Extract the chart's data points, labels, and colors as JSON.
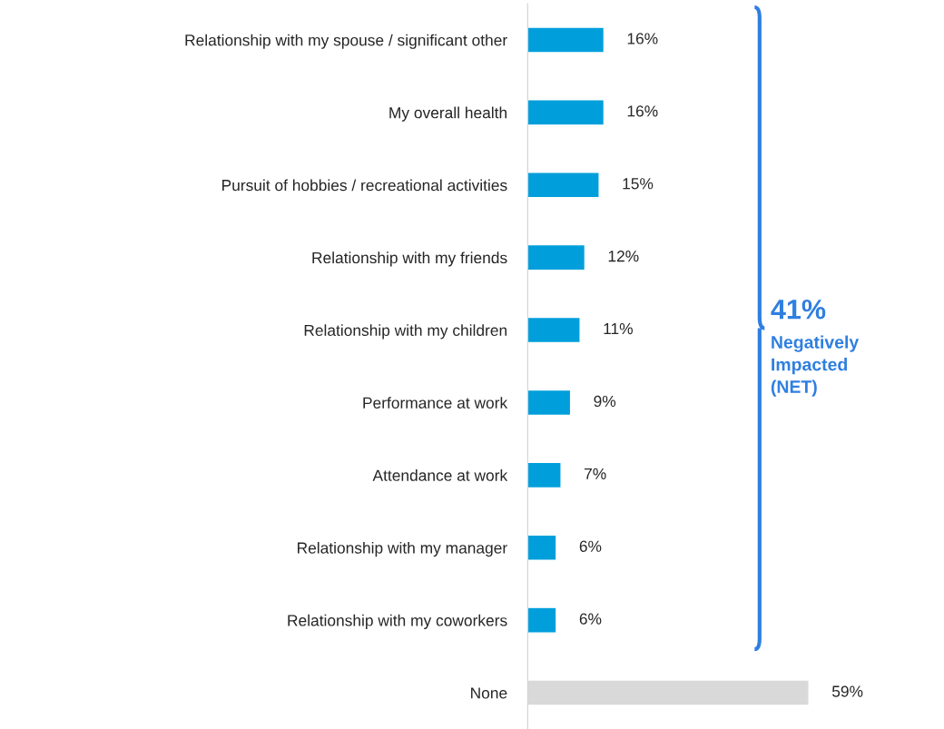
{
  "chart_data": {
    "type": "bar",
    "orientation": "horizontal",
    "categories": [
      "Relationship with my spouse / significant other",
      "My overall health",
      "Pursuit of hobbies / recreational activities",
      "Relationship with my friends",
      "Relationship with my children",
      "Performance at work",
      "Attendance at work",
      "Relationship with my manager",
      "Relationship with my coworkers",
      "None"
    ],
    "values": [
      16,
      16,
      15,
      12,
      11,
      9,
      7,
      6,
      6,
      59
    ],
    "colors": [
      "#009fdb",
      "#009fdb",
      "#009fdb",
      "#009fdb",
      "#009fdb",
      "#009fdb",
      "#009fdb",
      "#009fdb",
      "#009fdb",
      "#d9d9d9"
    ],
    "value_labels": [
      "16%",
      "16%",
      "15%",
      "12%",
      "11%",
      "9%",
      "7%",
      "6%",
      "6%",
      "59%"
    ],
    "annotations": [
      "41%",
      "Negatively\nImpacted\n(NET)"
    ],
    "legend": false,
    "grid": false
  }
}
